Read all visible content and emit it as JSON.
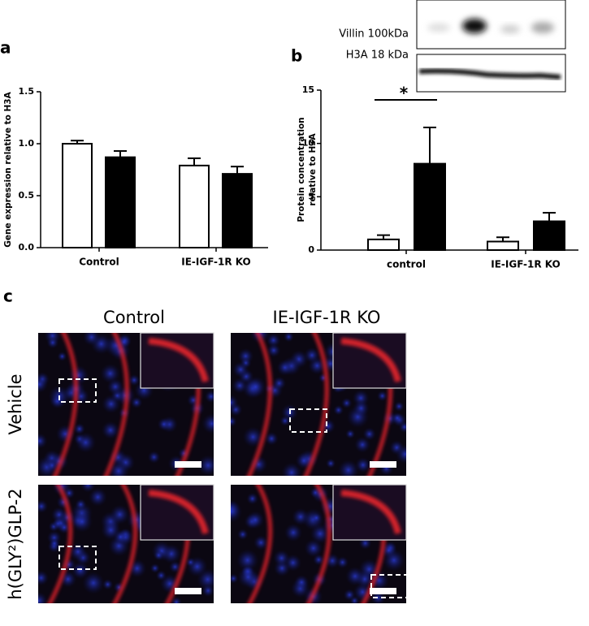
{
  "panel_labels": [
    "a",
    "b",
    "c"
  ],
  "chart_data": [
    {
      "type": "bar",
      "ylabel": "Gene expression relative to H3A",
      "categories": [
        "Control",
        "IE-IGF-1R KO"
      ],
      "series": [
        {
          "color": "#ffffff",
          "values": [
            1.0,
            0.79
          ],
          "errors": [
            0.03,
            0.07
          ]
        },
        {
          "color": "#000000",
          "values": [
            0.87,
            0.71
          ],
          "errors": [
            0.06,
            0.07
          ]
        }
      ],
      "ylim": [
        0,
        1.5
      ],
      "yticks": [
        {
          "value": 0,
          "label": "0.0"
        },
        0.5,
        {
          "value": 1,
          "label": "1.0"
        },
        1.5
      ]
    },
    {
      "type": "bar",
      "ylabel": "Protein concentration relative to H3A",
      "categories": [
        "control",
        "IE-IGF-1R KO"
      ],
      "series": [
        {
          "color": "#ffffff",
          "values": [
            1.0,
            0.8
          ],
          "errors": [
            0.4,
            0.4
          ]
        },
        {
          "color": "#000000",
          "values": [
            8.1,
            2.7
          ],
          "errors": [
            3.4,
            0.8
          ]
        }
      ],
      "ylim": [
        0,
        15
      ],
      "yticks": [
        0,
        5,
        10,
        15
      ],
      "annotation": "*",
      "blot_labels": [
        "Villin 100kDa",
        "H3A 18 kDa"
      ]
    }
  ],
  "panel_c": {
    "columns": [
      "Control",
      "IE-IGF-1R KO"
    ],
    "rows": [
      "Vehicle",
      "h(GLY²)GLP-2"
    ]
  }
}
